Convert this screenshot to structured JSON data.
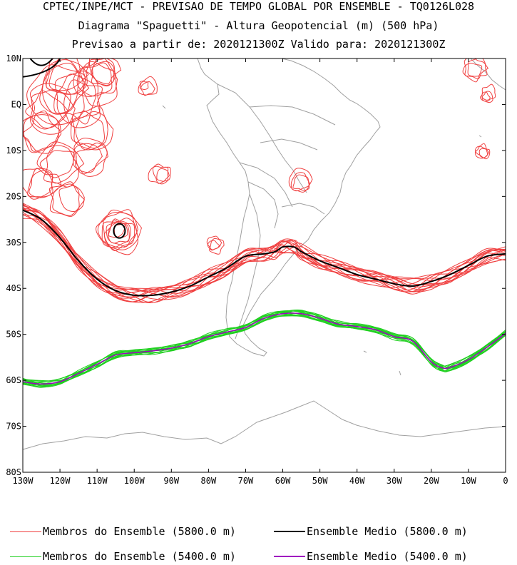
{
  "title_lines": [
    "CPTEC/INPE/MCT - PREVISAO DE TEMPO GLOBAL POR ENSEMBLE - TQ0126L028",
    "Diagrama \"Spaguetti\" - Altura Geopotencial (m) (500 hPa)",
    "Previsao a partir de: 2020121300Z  Valido para: 2020121300Z"
  ],
  "lat_labels": [
    "10N",
    "EQ",
    "10S",
    "20S",
    "30S",
    "40S",
    "50S",
    "60S",
    "70S",
    "80S"
  ],
  "lon_labels": [
    "130W",
    "120W",
    "110W",
    "100W",
    "90W",
    "80W",
    "70W",
    "60W",
    "50W",
    "40W",
    "30W",
    "20W",
    "10W",
    "0"
  ],
  "legend": {
    "members_5800": "Membros do Ensemble (5800.0 m)",
    "mean_5800": "Ensemble Medio (5800.0 m)",
    "members_5400": "Membros do Ensemble (5400.0 m)",
    "mean_5400": "Ensemble Medio (5400.0 m)"
  },
  "colors": {
    "members_5800": "#f04040",
    "mean_5800": "#000000",
    "members_5400": "#20d020",
    "mean_5400": "#a000c0",
    "coast": "#a0a0a0"
  },
  "map_extent": {
    "lon": [
      -130,
      0
    ],
    "lat": [
      -80,
      10
    ]
  },
  "chart_data": {
    "type": "line",
    "series": [
      {
        "name": "Ensemble Medio (5800.0 m)",
        "lon": [
          -130,
          -125,
          -120,
          -115,
          -110,
          -105,
          -100,
          -95,
          -90,
          -85,
          -80,
          -75,
          -70,
          -65,
          -62,
          -60,
          -57,
          -55,
          -50,
          -45,
          -40,
          -35,
          -30,
          -25,
          -20,
          -15,
          -10,
          -5,
          0
        ],
        "lat": [
          -23,
          -25,
          -29,
          -34,
          -38,
          -40.5,
          -41.5,
          -41.5,
          -40.8,
          -39.5,
          -37.5,
          -35.5,
          -33,
          -32.5,
          -32,
          -31,
          -31,
          -32,
          -34,
          -35.5,
          -37,
          -38,
          -39,
          -39.5,
          -38.5,
          -37,
          -35,
          -33,
          -32.5
        ]
      },
      {
        "name": "Ensemble Medio (5400.0 m)",
        "lon": [
          -130,
          -125,
          -120,
          -115,
          -110,
          -105,
          -100,
          -95,
          -90,
          -85,
          -80,
          -75,
          -70,
          -65,
          -60,
          -55,
          -50,
          -45,
          -40,
          -35,
          -30,
          -25,
          -20,
          -17,
          -15,
          -10,
          -5,
          0
        ],
        "lat": [
          -60.3,
          -60.8,
          -60.3,
          -58.5,
          -56.5,
          -54.5,
          -54,
          -53.6,
          -53,
          -52,
          -50.5,
          -49.5,
          -48.5,
          -46.5,
          -45.5,
          -45.5,
          -46.5,
          -47.8,
          -48.3,
          -49,
          -50.5,
          -51.5,
          -56,
          -57.3,
          -57.2,
          -55.5,
          -52.8,
          -49.8
        ]
      }
    ],
    "closed_5800_mean_lons": [
      -104
    ],
    "closed_5800_mean_lats": [
      -27.5
    ]
  }
}
